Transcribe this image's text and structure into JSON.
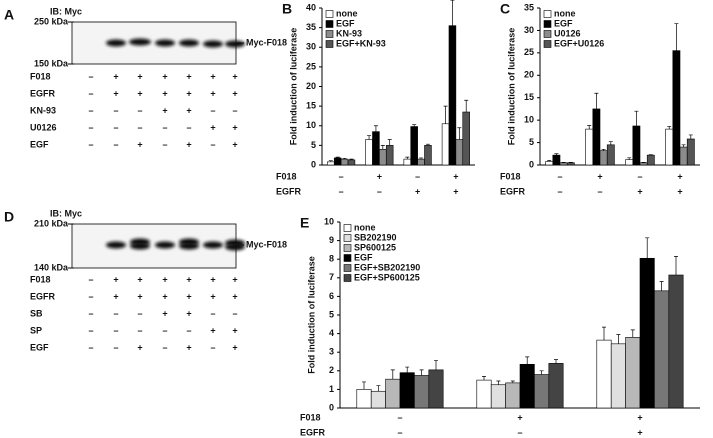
{
  "blot_a": {
    "panel": "A",
    "antibody": "IB: Myc",
    "markers": [
      "250 kDa",
      "150 kDa"
    ],
    "band_label": "Myc-F018",
    "rows": [
      {
        "name": "F018",
        "values": [
          "–",
          "+",
          "+",
          "+",
          "+",
          "+",
          "+"
        ]
      },
      {
        "name": "EGFR",
        "values": [
          "–",
          "+",
          "+",
          "+",
          "+",
          "+",
          "+"
        ]
      },
      {
        "name": "KN-93",
        "values": [
          "–",
          "–",
          "–",
          "+",
          "+",
          "–",
          "–"
        ]
      },
      {
        "name": "U0126",
        "values": [
          "–",
          "–",
          "–",
          "–",
          "–",
          "+",
          "+"
        ]
      },
      {
        "name": "EGF",
        "values": [
          "–",
          "–",
          "+",
          "–",
          "+",
          "–",
          "+"
        ]
      }
    ]
  },
  "blot_d": {
    "panel": "D",
    "antibody": "IB: Myc",
    "markers": [
      "210 kDa",
      "140 kDa"
    ],
    "band_label": "Myc-F018",
    "rows": [
      {
        "name": "F018",
        "values": [
          "–",
          "+",
          "+",
          "+",
          "+",
          "+",
          "+"
        ]
      },
      {
        "name": "EGFR",
        "values": [
          "–",
          "+",
          "+",
          "+",
          "+",
          "+",
          "+"
        ]
      },
      {
        "name": "SB",
        "values": [
          "–",
          "–",
          "–",
          "+",
          "+",
          "–",
          "–"
        ]
      },
      {
        "name": "SP",
        "values": [
          "–",
          "–",
          "–",
          "–",
          "–",
          "+",
          "+"
        ]
      },
      {
        "name": "EGF",
        "values": [
          "–",
          "–",
          "+",
          "–",
          "+",
          "–",
          "+"
        ]
      }
    ]
  },
  "chart_data": [
    {
      "type": "bar",
      "panel": "B",
      "ylabel": "Fold induction of luciferase",
      "ylim": [
        0,
        40
      ],
      "yticks": [
        0,
        5,
        10,
        15,
        20,
        25,
        30,
        35,
        40
      ],
      "legend": "upper left",
      "conditions": [
        {
          "name": "F018",
          "values": [
            "–",
            "+",
            "–",
            "+"
          ]
        },
        {
          "name": "EGFR",
          "values": [
            "–",
            "–",
            "+",
            "+"
          ]
        }
      ],
      "series": [
        {
          "name": "none",
          "color": "#ffffff",
          "values": [
            0.8,
            6.5,
            1.5,
            10.5
          ],
          "errors": [
            0.3,
            1,
            0.5,
            4.5
          ]
        },
        {
          "name": "EGF",
          "color": "#000000",
          "values": [
            1.8,
            8.5,
            9.8,
            35.5
          ],
          "errors": [
            0.2,
            1.5,
            0.5,
            6.5
          ]
        },
        {
          "name": "KN-93",
          "color": "#8c8c8c",
          "values": [
            1.5,
            4,
            1.5,
            6.5
          ],
          "errors": [
            0.2,
            1,
            0.3,
            3
          ]
        },
        {
          "name": "EGF+KN-93",
          "color": "#555555",
          "values": [
            1.3,
            5,
            5,
            13.5
          ],
          "errors": [
            0.2,
            1.5,
            0.3,
            3
          ]
        }
      ]
    },
    {
      "type": "bar",
      "panel": "C",
      "ylabel": "Fold induction of luciferase",
      "ylim": [
        0,
        35
      ],
      "yticks": [
        0,
        5,
        10,
        15,
        20,
        25,
        30,
        35
      ],
      "legend": "upper left",
      "conditions": [
        {
          "name": "F018",
          "values": [
            "–",
            "+",
            "–",
            "+"
          ]
        },
        {
          "name": "EGFR",
          "values": [
            "–",
            "–",
            "+",
            "+"
          ]
        }
      ],
      "series": [
        {
          "name": "none",
          "color": "#ffffff",
          "values": [
            0.8,
            8,
            1.2,
            8
          ],
          "errors": [
            0.2,
            0.8,
            0.4,
            0.6
          ]
        },
        {
          "name": "EGF",
          "color": "#000000",
          "values": [
            2.2,
            12.5,
            8.7,
            25.5
          ],
          "errors": [
            0.3,
            3.5,
            3.3,
            6
          ]
        },
        {
          "name": "U0126",
          "color": "#8c8c8c",
          "values": [
            0.5,
            3.2,
            0.5,
            4
          ],
          "errors": [
            0.1,
            0.3,
            0.1,
            0.5
          ]
        },
        {
          "name": "EGF+U0126",
          "color": "#555555",
          "values": [
            0.5,
            4.5,
            2.2,
            5.8
          ],
          "errors": [
            0.1,
            0.7,
            0.1,
            0.9
          ]
        }
      ]
    },
    {
      "type": "bar",
      "panel": "E",
      "ylabel": "Fold induction of luciferase",
      "ylim": [
        0,
        10
      ],
      "yticks": [
        0,
        1,
        2,
        3,
        4,
        5,
        6,
        7,
        8,
        9,
        10
      ],
      "legend": "upper left",
      "conditions": [
        {
          "name": "F018",
          "values": [
            "–",
            "+",
            "+"
          ]
        },
        {
          "name": "EGFR",
          "values": [
            "–",
            "–",
            "+"
          ]
        }
      ],
      "series": [
        {
          "name": "none",
          "color": "#ffffff",
          "values": [
            1.0,
            1.5,
            3.65
          ],
          "errors": [
            0.4,
            0.2,
            0.7
          ]
        },
        {
          "name": "SB202190",
          "color": "#e0e0e0",
          "values": [
            0.9,
            1.25,
            3.45
          ],
          "errors": [
            0.3,
            0.2,
            0.5
          ]
        },
        {
          "name": "SP600125",
          "color": "#b8b8b8",
          "values": [
            1.55,
            1.35,
            3.8
          ],
          "errors": [
            0.5,
            0.1,
            0.4
          ]
        },
        {
          "name": "EGF",
          "color": "#000000",
          "values": [
            1.9,
            2.35,
            8.05
          ],
          "errors": [
            0.3,
            0.4,
            1.1
          ]
        },
        {
          "name": "EGF+SB202190",
          "color": "#777777",
          "values": [
            1.75,
            1.8,
            6.3
          ],
          "errors": [
            0.3,
            0.2,
            0.5
          ]
        },
        {
          "name": "EGF+SP600125",
          "color": "#444444",
          "values": [
            2.05,
            2.4,
            7.15
          ],
          "errors": [
            0.5,
            0.2,
            1.0
          ]
        }
      ]
    }
  ]
}
